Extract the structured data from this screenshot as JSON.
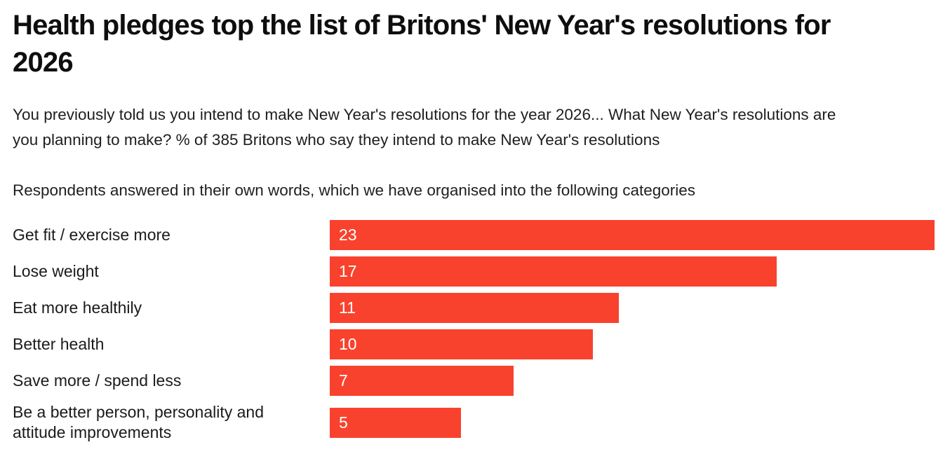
{
  "header": {
    "title": "Health pledges top the list of Britons' New Year's resolutions for 2026",
    "subtitle": "You previously told us you intend to make New Year's resolutions for the year 2026... What New Year's resolutions are you planning to make? % of 385 Britons who say they intend to make New Year's resolutions",
    "note": "Respondents answered in their own words, which we have organised into the following categories"
  },
  "colors": {
    "bar": "#f9422d",
    "title_text": "#0e0e0e",
    "body_text": "#1e1e1e",
    "value_text": "#ffffff",
    "background": "#ffffff"
  },
  "chart_data": {
    "type": "bar",
    "orientation": "horizontal",
    "title": "Health pledges top the list of Britons' New Year's resolutions for 2026",
    "categories": [
      "Get fit / exercise more",
      "Lose weight",
      "Eat more healthily",
      "Better health",
      "Save more / spend less",
      "Be a better person, personality and attitude improvements"
    ],
    "values": [
      23,
      17,
      11,
      10,
      7,
      5
    ],
    "xlim": [
      0,
      23
    ],
    "xlabel": "",
    "ylabel": "",
    "units": "% of 385 Britons",
    "value_labels_shown": true,
    "value_label_position": "inside-start",
    "grid": false,
    "legend": false,
    "axis_ticks_shown": false
  }
}
